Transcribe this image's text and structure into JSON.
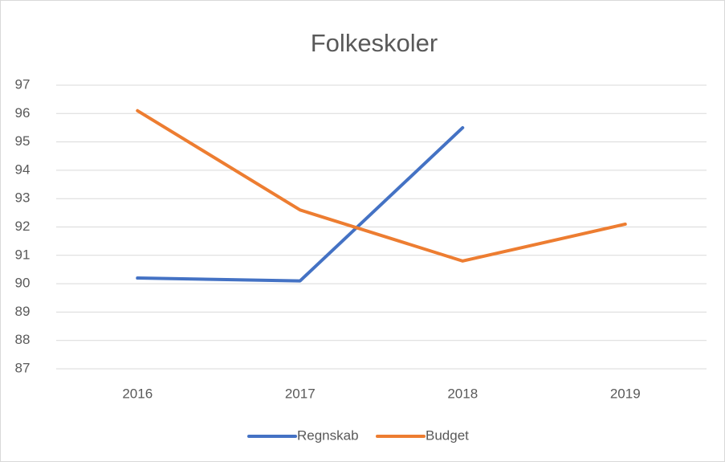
{
  "chart_data": {
    "type": "line",
    "title": "Folkeskoler",
    "categories": [
      "2016",
      "2017",
      "2018",
      "2019"
    ],
    "series": [
      {
        "name": "Regnskab",
        "color": "#4472c4",
        "values": [
          90.2,
          90.1,
          95.5,
          null
        ]
      },
      {
        "name": "Budget",
        "color": "#ed7d31",
        "values": [
          96.1,
          92.6,
          90.8,
          92.1
        ]
      }
    ],
    "ylim": [
      87,
      97
    ],
    "yticks": [
      87,
      88,
      89,
      90,
      91,
      92,
      93,
      94,
      95,
      96,
      97
    ],
    "grid": true,
    "legend": "bottom"
  }
}
